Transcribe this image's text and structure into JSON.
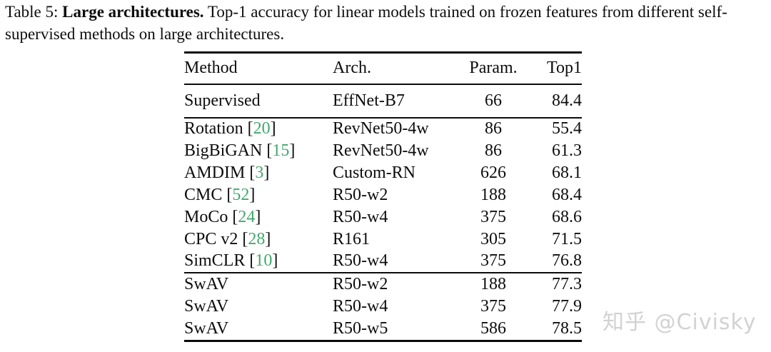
{
  "caption": {
    "label": "Table 5: ",
    "title_bold": "Large architectures.",
    "body": " Top-1 accuracy for linear models trained on frozen features from different self-supervised methods on large architectures."
  },
  "table": {
    "columns": [
      "Method",
      "Arch.",
      "Param.",
      "Top1"
    ],
    "sections": [
      {
        "rows": [
          {
            "method": "Supervised",
            "cite": null,
            "arch": "EffNet-B7",
            "param": "66",
            "top1": "84.4",
            "bold": false
          }
        ]
      },
      {
        "rows": [
          {
            "method": "Rotation",
            "cite": "20",
            "arch": "RevNet50-4w",
            "param": "86",
            "top1": "55.4",
            "bold": false
          },
          {
            "method": "BigBiGAN",
            "cite": "15",
            "arch": "RevNet50-4w",
            "param": "86",
            "top1": "61.3",
            "bold": false
          },
          {
            "method": "AMDIM",
            "cite": "3",
            "arch": "Custom-RN",
            "param": "626",
            "top1": "68.1",
            "bold": false
          },
          {
            "method": "CMC",
            "cite": "52",
            "arch": "R50-w2",
            "param": "188",
            "top1": "68.4",
            "bold": false
          },
          {
            "method": "MoCo",
            "cite": "24",
            "arch": "R50-w4",
            "param": "375",
            "top1": "68.6",
            "bold": false
          },
          {
            "method": "CPC v2",
            "cite": "28",
            "arch": "R161",
            "param": "305",
            "top1": "71.5",
            "bold": false
          },
          {
            "method": "SimCLR",
            "cite": "10",
            "arch": "R50-w4",
            "param": "375",
            "top1": "76.8",
            "bold": false
          }
        ]
      },
      {
        "rows": [
          {
            "method": "SwAV",
            "cite": null,
            "arch": "R50-w2",
            "param": "188",
            "top1": "77.3",
            "bold": true
          },
          {
            "method": "SwAV",
            "cite": null,
            "arch": "R50-w4",
            "param": "375",
            "top1": "77.9",
            "bold": true
          },
          {
            "method": "SwAV",
            "cite": null,
            "arch": "R50-w5",
            "param": "586",
            "top1": "78.5",
            "bold": true
          }
        ]
      }
    ]
  },
  "watermark": {
    "text": "知乎 @Civisky"
  },
  "colors": {
    "citation_green": "#43A86C",
    "watermark_gray": "#D2D2D2",
    "text_black": "#0D0D0D",
    "background": "#FFFFFF"
  }
}
